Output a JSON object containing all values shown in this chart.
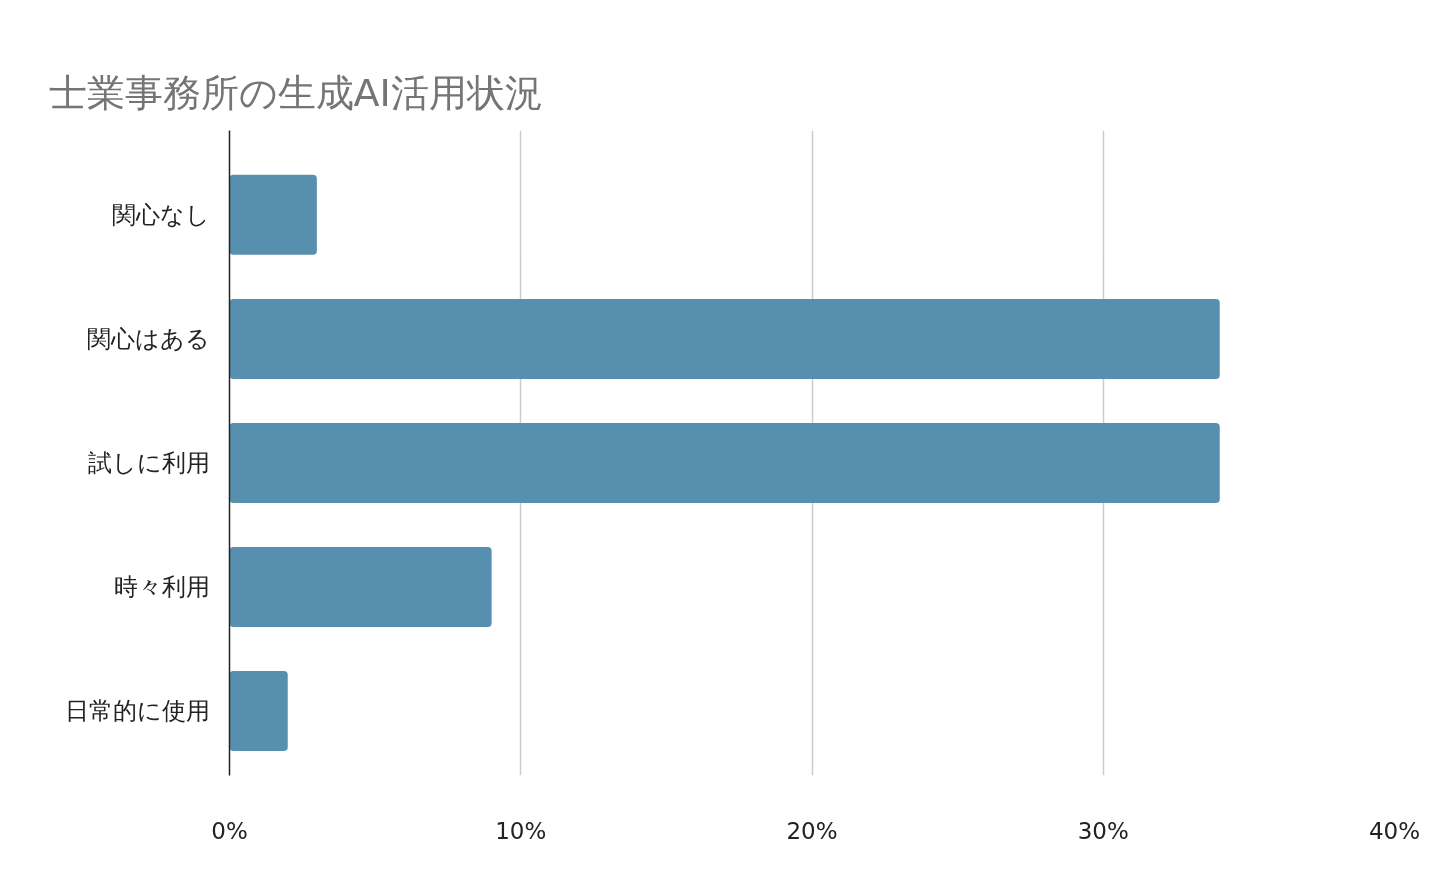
{
  "chart_data": {
    "type": "bar",
    "orientation": "horizontal",
    "title": "士業事務所の生成AI活用状況",
    "categories": [
      "関心なし",
      "関心はある",
      "試しに利用",
      "時々利用",
      "日常的に使用"
    ],
    "values": [
      3,
      34,
      34,
      9,
      2
    ],
    "color": "#5790ae",
    "xlim": [
      0,
      40
    ],
    "xticks": [
      {
        "value": 0,
        "label": "0%"
      },
      {
        "value": 10,
        "label": "10%"
      },
      {
        "value": 20,
        "label": "20%"
      },
      {
        "value": 30,
        "label": "30%"
      },
      {
        "value": 40,
        "label": "40%"
      }
    ],
    "grid": "x"
  }
}
